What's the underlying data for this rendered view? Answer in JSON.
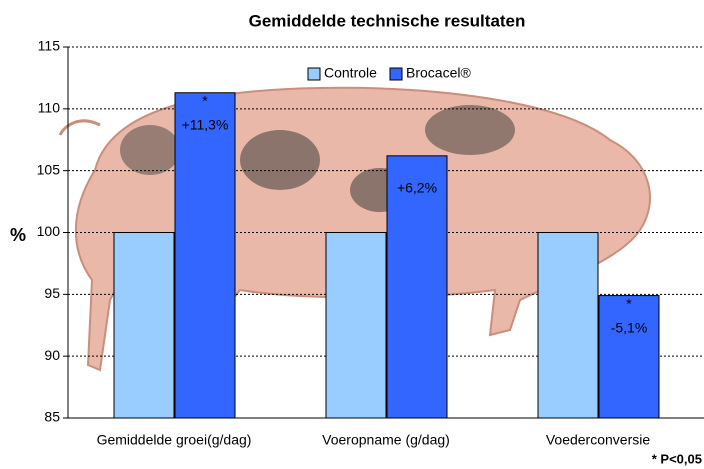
{
  "chart_data": {
    "type": "bar",
    "title": "Gemiddelde technische resultaten",
    "y_label": "%",
    "categories": [
      "Gemiddelde groei(g/dag)",
      "Voeropname (g/dag)",
      "Voederconversie"
    ],
    "series": [
      {
        "name": "Controle",
        "color": "#99ccff",
        "values": [
          100,
          100,
          100
        ]
      },
      {
        "name": "Brocacel®",
        "color": "#3366ff",
        "values": [
          111.3,
          106.2,
          94.9
        ]
      }
    ],
    "bar_notes": [
      "+11,3%",
      "+6,2%",
      "-5,1%"
    ],
    "significance_marker": "*",
    "significant": [
      true,
      false,
      true
    ],
    "footnote": "* P<0,05",
    "ylim": [
      85,
      115
    ],
    "yticks": [
      85,
      90,
      95,
      100,
      105,
      110,
      115
    ],
    "grid": true,
    "legend": "top"
  }
}
